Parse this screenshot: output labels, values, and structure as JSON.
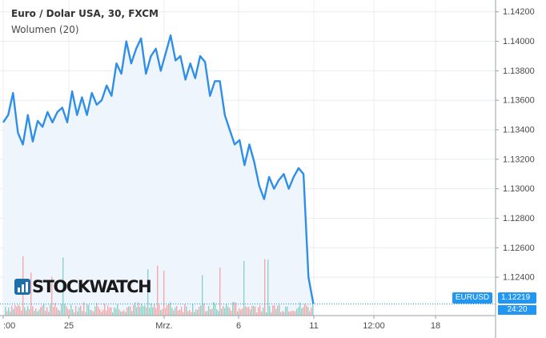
{
  "legend": {
    "title": "Euro / Dolar USA, 30, FXCM",
    "volume_label": "Wolumen (20)"
  },
  "logo_text": "STOCKWATCH",
  "price_tags": {
    "symbol": "EURUSD",
    "last": "1.12219",
    "countdown": "24:20"
  },
  "colors": {
    "line": "#2f8fe8",
    "area": "#eef5fd",
    "volume_up": "#8cd3c6",
    "volume_down": "#f2a9a9",
    "grid": "#e8ecf1",
    "tag": "#2196f3"
  },
  "chart_data": {
    "type": "area",
    "x_tick_labels": [
      ":00",
      "25",
      "Mrz.",
      "6",
      "11",
      "12:00",
      "18"
    ],
    "y_tick_labels": [
      "1.14200",
      "1.14000",
      "1.13800",
      "1.13600",
      "1.13400",
      "1.13200",
      "1.13000",
      "1.12800",
      "1.12600",
      "1.12400"
    ],
    "ylim": [
      1.1214,
      1.1428
    ],
    "xlim": [
      0,
      100
    ],
    "last_value": 1.12219,
    "grid": true,
    "series": [
      {
        "x": [
          0,
          1,
          2,
          3,
          4,
          5,
          6,
          7,
          8,
          9,
          10,
          11,
          12,
          13,
          14,
          15,
          16,
          17,
          18,
          19,
          20,
          21,
          22,
          23,
          24,
          25,
          26,
          27,
          28,
          29,
          30,
          31,
          32,
          33,
          34,
          35,
          36,
          37,
          38,
          39,
          40,
          41,
          42,
          43,
          44,
          45,
          46,
          47,
          48,
          49,
          50,
          51,
          52,
          53,
          54,
          55,
          56,
          57,
          58,
          59,
          60,
          61,
          62,
          63
        ],
        "values": [
          1.1345,
          1.135,
          1.1365,
          1.1338,
          1.133,
          1.135,
          1.1332,
          1.1346,
          1.1342,
          1.1352,
          1.1345,
          1.1352,
          1.1355,
          1.1345,
          1.1366,
          1.135,
          1.1362,
          1.135,
          1.1365,
          1.1357,
          1.136,
          1.137,
          1.1363,
          1.1385,
          1.1378,
          1.14,
          1.1385,
          1.1395,
          1.1402,
          1.1378,
          1.139,
          1.1395,
          1.138,
          1.1392,
          1.1404,
          1.1387,
          1.139,
          1.1374,
          1.1385,
          1.1375,
          1.139,
          1.1386,
          1.1363,
          1.1373,
          1.1373,
          1.135,
          1.134,
          1.133,
          1.1333,
          1.1316,
          1.133,
          1.1318,
          1.1302,
          1.1293,
          1.1308,
          1.13,
          1.1306,
          1.131,
          1.13,
          1.1308,
          1.1314,
          1.131,
          1.124,
          1.1222
        ]
      }
    ]
  }
}
